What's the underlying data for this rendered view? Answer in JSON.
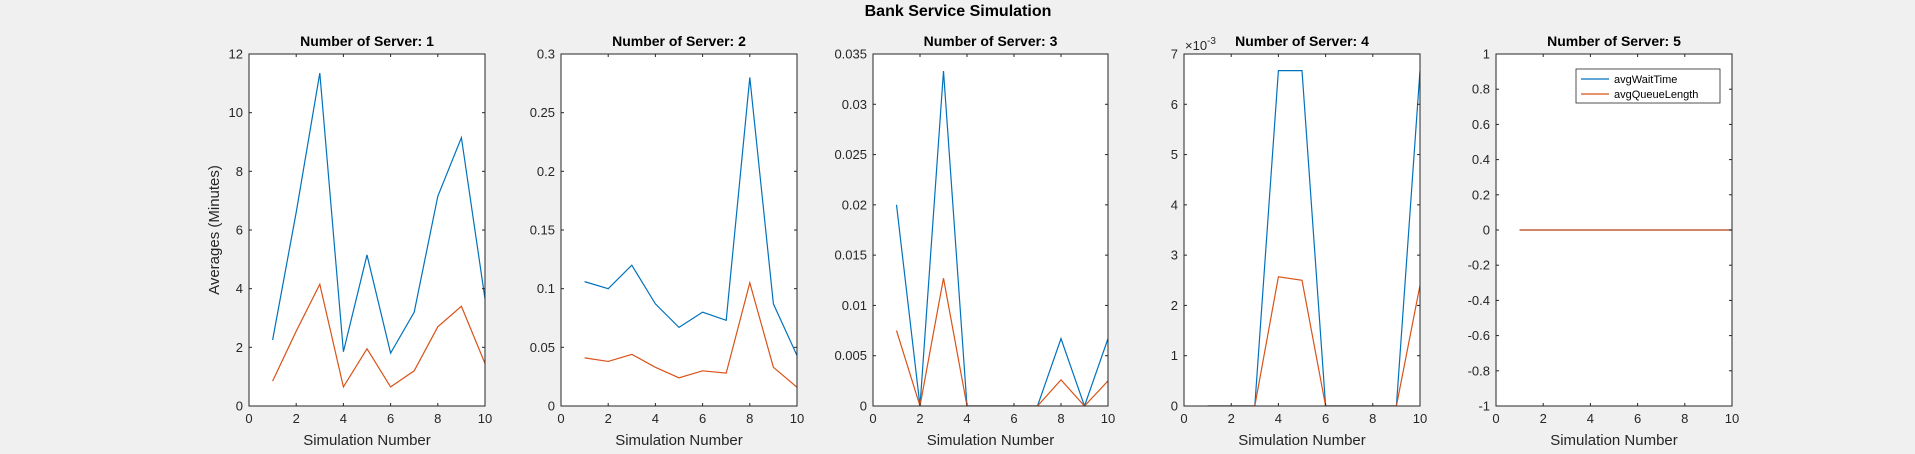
{
  "figure": {
    "suptitle": "Bank Service Simulation"
  },
  "colors": {
    "avgWaitTime": "#0072BD",
    "avgQueueLength": "#D95319"
  },
  "chart_data": [
    {
      "type": "line",
      "title": "Number of Server: 1",
      "xlabel": "Simulation Number",
      "ylabel": "Averages (Minutes)",
      "xlim": [
        0,
        10
      ],
      "ylim": [
        0,
        12
      ],
      "xticks": [
        "0",
        "2",
        "4",
        "6",
        "8",
        "10"
      ],
      "yticks": [
        "0",
        "2",
        "4",
        "6",
        "8",
        "10",
        "12"
      ],
      "exponent": "",
      "x": [
        1,
        2,
        3,
        4,
        5,
        6,
        7,
        8,
        9,
        10
      ],
      "series": [
        {
          "name": "avgWaitTime",
          "values": [
            2.25,
            6.6,
            11.35,
            1.85,
            5.15,
            1.8,
            3.2,
            7.15,
            9.15,
            3.65
          ]
        },
        {
          "name": "avgQueueLength",
          "values": [
            0.85,
            2.55,
            4.15,
            0.65,
            1.95,
            0.65,
            1.2,
            2.7,
            3.4,
            1.45
          ]
        }
      ]
    },
    {
      "type": "line",
      "title": "Number of Server: 2",
      "xlabel": "Simulation Number",
      "ylabel": "",
      "xlim": [
        0,
        10
      ],
      "ylim": [
        0,
        0.3
      ],
      "xticks": [
        "0",
        "2",
        "4",
        "6",
        "8",
        "10"
      ],
      "yticks": [
        "0",
        "0.05",
        "0.1",
        "0.15",
        "0.2",
        "0.25",
        "0.3"
      ],
      "exponent": "",
      "x": [
        1,
        2,
        3,
        4,
        5,
        6,
        7,
        8,
        9,
        10
      ],
      "series": [
        {
          "name": "avgWaitTime",
          "values": [
            0.106,
            0.1,
            0.12,
            0.087,
            0.067,
            0.08,
            0.073,
            0.28,
            0.087,
            0.043
          ]
        },
        {
          "name": "avgQueueLength",
          "values": [
            0.041,
            0.038,
            0.044,
            0.033,
            0.024,
            0.03,
            0.028,
            0.105,
            0.033,
            0.016
          ]
        }
      ]
    },
    {
      "type": "line",
      "title": "Number of Server: 3",
      "xlabel": "Simulation Number",
      "ylabel": "",
      "xlim": [
        0,
        10
      ],
      "ylim": [
        0,
        0.035
      ],
      "xticks": [
        "0",
        "2",
        "4",
        "6",
        "8",
        "10"
      ],
      "yticks": [
        "0",
        "0.005",
        "0.01",
        "0.015",
        "0.02",
        "0.025",
        "0.03",
        "0.035"
      ],
      "exponent": "",
      "x": [
        1,
        2,
        3,
        4,
        5,
        6,
        7,
        8,
        9,
        10
      ],
      "series": [
        {
          "name": "avgWaitTime",
          "values": [
            0.02,
            0,
            0.0333,
            0,
            0,
            0,
            0,
            0.0067,
            0,
            0.0067
          ]
        },
        {
          "name": "avgQueueLength",
          "values": [
            0.0075,
            0,
            0.0127,
            0,
            0,
            0,
            0,
            0.0026,
            0,
            0.0025
          ]
        }
      ]
    },
    {
      "type": "line",
      "title": "Number of Server: 4",
      "xlabel": "Simulation Number",
      "ylabel": "",
      "xlim": [
        0,
        10
      ],
      "ylim": [
        0,
        0.007
      ],
      "xticks": [
        "0",
        "2",
        "4",
        "6",
        "8",
        "10"
      ],
      "yticks": [
        "0",
        "1",
        "2",
        "3",
        "4",
        "5",
        "6",
        "7"
      ],
      "exponent": "-3",
      "x": [
        1,
        2,
        3,
        4,
        5,
        6,
        7,
        8,
        9,
        10
      ],
      "series": [
        {
          "name": "avgWaitTime",
          "values": [
            0,
            0,
            0,
            0.00667,
            0.00667,
            0,
            0,
            0,
            0,
            0.00667
          ]
        },
        {
          "name": "avgQueueLength",
          "values": [
            0,
            0,
            0,
            0.00257,
            0.0025,
            0,
            0,
            0,
            0,
            0.0024
          ]
        }
      ]
    },
    {
      "type": "line",
      "title": "Number of Server: 5",
      "xlabel": "Simulation Number",
      "ylabel": "",
      "xlim": [
        0,
        10
      ],
      "ylim": [
        -1,
        1
      ],
      "xticks": [
        "0",
        "2",
        "4",
        "6",
        "8",
        "10"
      ],
      "yticks": [
        "-1",
        "-0.8",
        "-0.6",
        "-0.4",
        "-0.2",
        "0",
        "0.2",
        "0.4",
        "0.6",
        "0.8",
        "1"
      ],
      "exponent": "",
      "legend": {
        "entries": [
          "avgWaitTime",
          "avgQueueLength"
        ],
        "placement": "top-right"
      },
      "x": [
        1,
        2,
        3,
        4,
        5,
        6,
        7,
        8,
        9,
        10
      ],
      "series": [
        {
          "name": "avgWaitTime",
          "values": [
            0,
            0,
            0,
            0,
            0,
            0,
            0,
            0,
            0,
            0
          ]
        },
        {
          "name": "avgQueueLength",
          "values": [
            0,
            0,
            0,
            0,
            0,
            0,
            0,
            0,
            0,
            0
          ]
        }
      ]
    }
  ]
}
